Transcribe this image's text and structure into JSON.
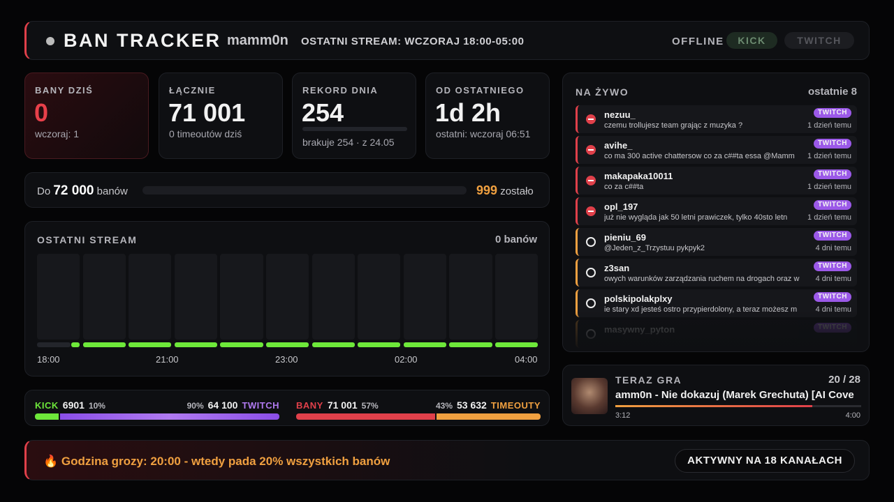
{
  "header": {
    "title": "BAN TRACKER",
    "channel": "mamm0n",
    "last_stream": "OSTATNI STREAM: WCZORAJ 18:00-05:00",
    "status": "OFFLINE",
    "buttons": [
      "KICK",
      "TWITCH"
    ]
  },
  "stats": [
    {
      "label": "BANY DZIŚ",
      "value": "0",
      "sub": "wczoraj: 1"
    },
    {
      "label": "ŁĄCZNIE",
      "value": "71 001",
      "sub": "0 timeoutów dziś"
    },
    {
      "label": "REKORD DNIA",
      "value": "254",
      "sub": "brakuje 254 · z 24.05"
    },
    {
      "label": "OD OSTATNIEGO",
      "value": "1d 2h",
      "sub": "ostatni: wczoraj 06:51"
    }
  ],
  "goal": {
    "prefix": "Do",
    "target": "72 000",
    "suffix": "banów",
    "remaining": "999",
    "remaining_suffix": "zostało"
  },
  "stream": {
    "title": "OSTATNI STREAM",
    "count": "0 banów",
    "times": [
      "18:00",
      "21:00",
      "23:00",
      "02:00",
      "04:00"
    ]
  },
  "split": [
    {
      "left_name": "KICK",
      "left_count": "6901",
      "left_pct": {
        "value": 10,
        "label": "10%"
      },
      "right_pct": {
        "value": 90,
        "label": "90%"
      },
      "right_count": "64 100",
      "right_name": "TWITCH"
    },
    {
      "left_name": "BANY",
      "left_count": "71 001",
      "left_pct": {
        "value": 57,
        "label": "57%"
      },
      "right_pct": {
        "value": 43,
        "label": "43%"
      },
      "right_count": "53 632",
      "right_name": "TIMEOUTY"
    }
  ],
  "live": {
    "title": "NA ŻYWO",
    "subtitle": "ostatnie 8",
    "items": [
      {
        "user": "nezuu_",
        "message": "czemu trollujesz team grając z muzyka ?",
        "platform": "TWITCH",
        "time": "1 dzień temu"
      },
      {
        "user": "avihe_",
        "message": "co ma 300 active chattersow co za c##ta essa @Mamm",
        "platform": "TWITCH",
        "time": "1 dzień temu"
      },
      {
        "user": "makapaka10011",
        "message": "co za c##ta",
        "platform": "TWITCH",
        "time": "1 dzień temu"
      },
      {
        "user": "opl_197",
        "message": "już nie wygląda jak 50 letni prawiczek, tylko 40sto letn",
        "platform": "TWITCH",
        "time": "1 dzień temu"
      },
      {
        "user": "pieniu_69",
        "message": "@Jeden_z_Trzystuu pykpyk2",
        "platform": "TWITCH",
        "time": "4 dni temu"
      },
      {
        "user": "z3san",
        "message": "owych warunków zarządzania ruchem na drogach oraz w",
        "platform": "TWITCH",
        "time": "4 dni temu"
      },
      {
        "user": "polskipolakplxy",
        "message": "ie stary xd jesteś ostro przypierdolony, a teraz możesz m",
        "platform": "TWITCH",
        "time": "4 dni temu"
      },
      {
        "user": "masywny_pyton",
        "platform": "TWITCH"
      }
    ]
  },
  "now_playing": {
    "title": "TERAZ GRA",
    "position": "20 / 28",
    "song": "amm0n - Nie dokazuj (Marek Grechuta) [AI Cove",
    "elapsed": "3:12",
    "duration": "4:00"
  },
  "footer": {
    "message": "🔥 Godzina grozy: 20:00 - wtedy pada 20% wszystkich banów",
    "badge": "AKTYWNY NA 18 KANAŁACH"
  }
}
